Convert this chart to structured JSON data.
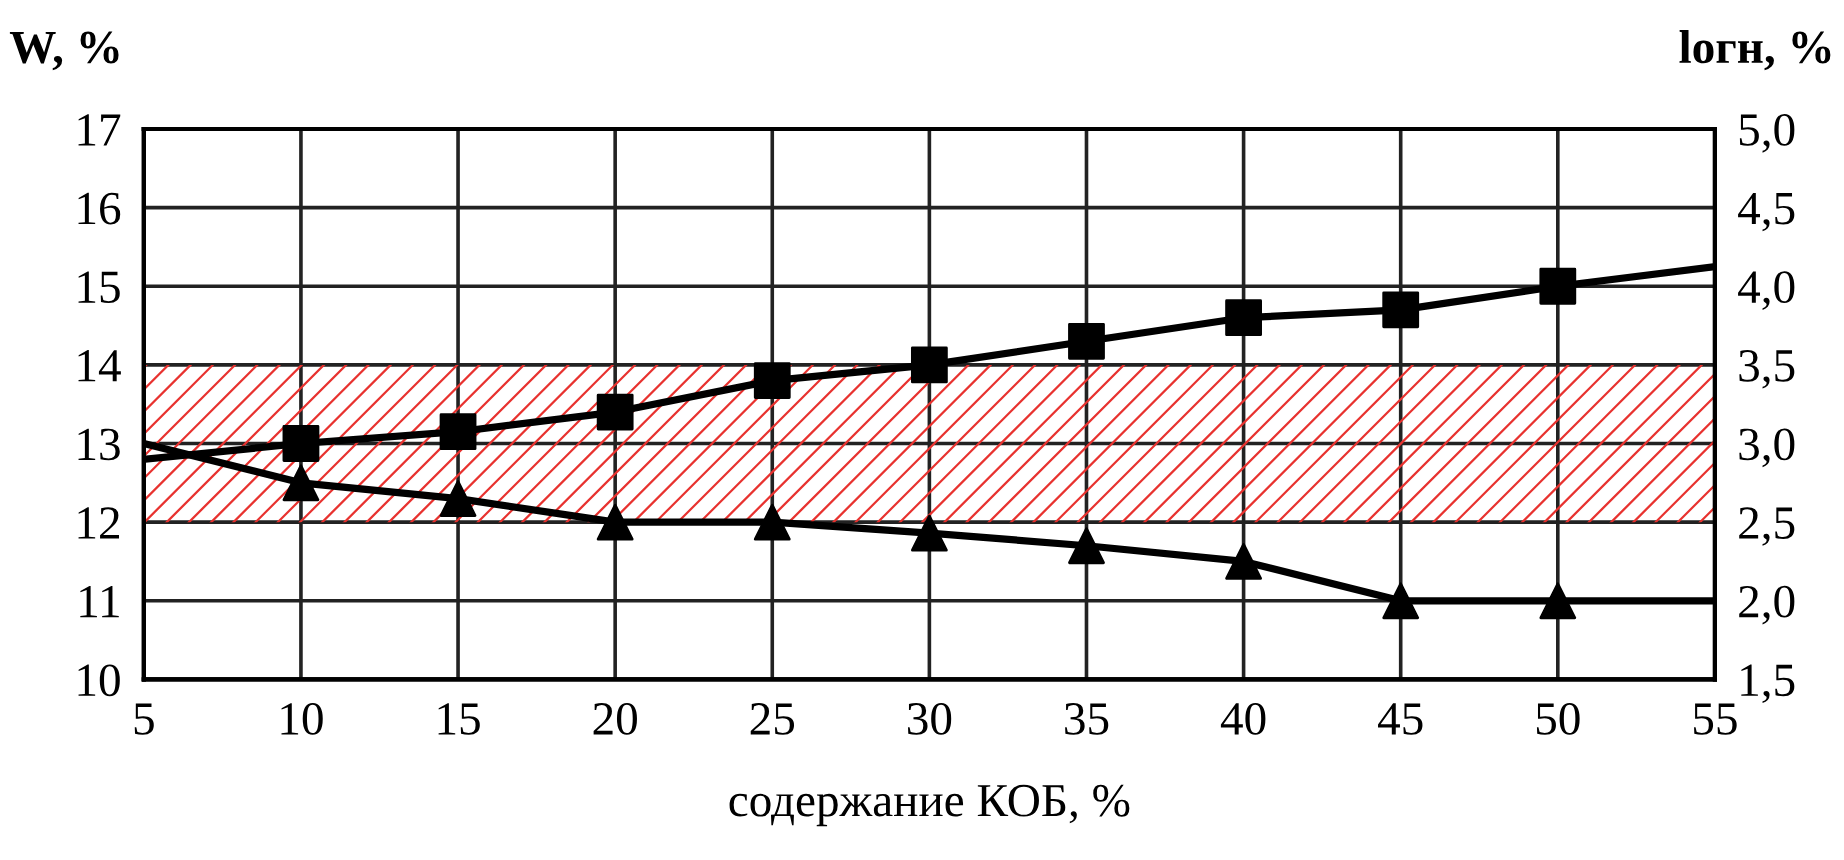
{
  "chart_data": {
    "type": "line",
    "xlabel": "содержание КОБ, %",
    "ylabel": "W, %",
    "y2label": "lогн, %",
    "x": [
      5,
      10,
      15,
      20,
      25,
      30,
      35,
      40,
      45,
      50,
      55
    ],
    "xlim": [
      5,
      55
    ],
    "xticks": [
      5,
      10,
      15,
      20,
      25,
      30,
      35,
      40,
      45,
      50,
      55
    ],
    "ylim": [
      10,
      17
    ],
    "yticks": [
      10,
      11,
      12,
      13,
      14,
      15,
      16,
      17
    ],
    "y2lim": [
      1.5,
      5.0
    ],
    "y2ticks": [
      {
        "value": 1.5,
        "label": "1,5"
      },
      {
        "value": 2.0,
        "label": "2,0"
      },
      {
        "value": 2.5,
        "label": "2,5"
      },
      {
        "value": 3.0,
        "label": "3,0"
      },
      {
        "value": 3.5,
        "label": "3,5"
      },
      {
        "value": 4.0,
        "label": "4,0"
      },
      {
        "value": 4.5,
        "label": "4,5"
      },
      {
        "value": 5.0,
        "label": "5,0"
      }
    ],
    "grid": true,
    "bands": [
      {
        "axis": "y",
        "from": 12,
        "to": 14,
        "color": "#e8322f"
      }
    ],
    "series": [
      {
        "color": "#000000",
        "marker": "none",
        "values": [
          12.8,
          13.0,
          13.15,
          13.4,
          13.8,
          14.0,
          14.3,
          14.6,
          14.7,
          15.0,
          15.25
        ]
      },
      {
        "type": "scatter",
        "color": "#000000",
        "marker": "square",
        "x": [
          10,
          15,
          20,
          25,
          30,
          35,
          40,
          45,
          50
        ],
        "values": [
          13.0,
          13.15,
          13.4,
          13.8,
          14.0,
          14.3,
          14.6,
          14.7,
          15.0
        ]
      },
      {
        "axis": "y2",
        "color": "#000000",
        "marker": "none",
        "values": [
          3.0,
          2.75,
          2.65,
          2.5,
          2.5,
          2.43,
          2.35,
          2.25,
          2.0,
          2.0,
          2.0
        ]
      },
      {
        "type": "scatter",
        "axis": "y2",
        "color": "#000000",
        "marker": "triangle",
        "x": [
          10,
          15,
          20,
          25,
          30,
          35,
          40,
          45,
          50
        ],
        "values": [
          2.75,
          2.65,
          2.5,
          2.5,
          2.43,
          2.35,
          2.25,
          2.0,
          2.0
        ]
      }
    ]
  }
}
